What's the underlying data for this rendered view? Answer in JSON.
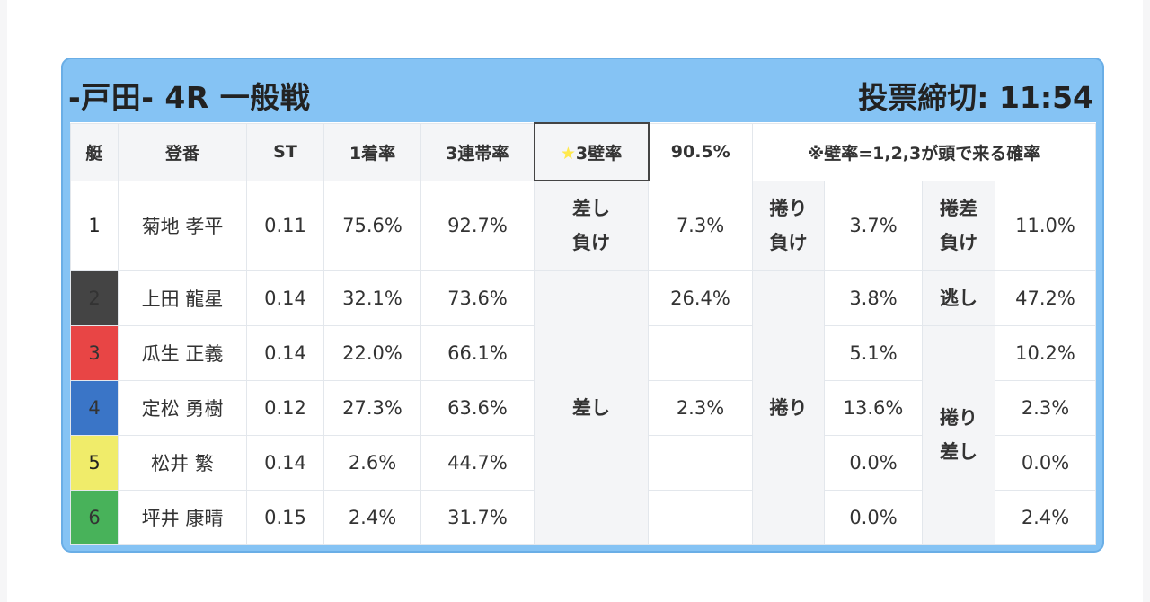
{
  "header": {
    "title": "-戸田- 4R 一般戦",
    "deadline": "投票締切: 11:54"
  },
  "columns": {
    "frame": "艇",
    "name": "登番",
    "st": "ST",
    "first_rate": "1着率",
    "quinella_rate": "3連帯率"
  },
  "wall": {
    "label_star": "★",
    "label_text": "3壁率",
    "value": "90.5%",
    "note": "※壁率=1,2,3が頭で来る確率"
  },
  "colors": {
    "highlight": "#efa223",
    "percent": "#d92c2c"
  },
  "rows": [
    {
      "frame": "1",
      "color": "#ffffff",
      "name": "菊地 孝平",
      "st": "0.11",
      "first": "75.6%",
      "quinella": "92.7%"
    },
    {
      "frame": "2",
      "color": "#444444",
      "name": "上田 龍星",
      "st": "0.14",
      "first": "32.1%",
      "quinella": "73.6%"
    },
    {
      "frame": "3",
      "color": "#e84545",
      "name": "瓜生 正義",
      "st": "0.14",
      "first": "22.0%",
      "quinella": "66.1%"
    },
    {
      "frame": "4",
      "color": "#3a75c7",
      "name": "定松 勇樹",
      "st": "0.12",
      "first": "27.3%",
      "quinella": "63.6%"
    },
    {
      "frame": "5",
      "color": "#f0ec6a",
      "name": "松井 繁",
      "st": "0.14",
      "first": "2.6%",
      "quinella": "44.7%"
    },
    {
      "frame": "6",
      "color": "#48b25a",
      "name": "坪井 康晴",
      "st": "0.15",
      "first": "2.4%",
      "quinella": "31.7%"
    }
  ],
  "results": {
    "sashi_make": {
      "line1": "差し",
      "line2": "負け",
      "value": "7.3%"
    },
    "makuri_make": {
      "line1": "捲り",
      "line2": "負け",
      "value": "3.7%"
    },
    "makurizashi_make": {
      "line1": "捲差",
      "line2": "負け",
      "value": "11.0%"
    },
    "sashi": {
      "label": "差し",
      "v2": "26.4%",
      "v3": "",
      "v4": "2.3%",
      "v5": "",
      "v6": ""
    },
    "makuri": {
      "label": "捲り",
      "v2": "3.8%",
      "v3": "5.1%",
      "v4": "13.6%",
      "v5": "0.0%",
      "v6": "0.0%"
    },
    "nige": {
      "label": "逃し",
      "value": "47.2%"
    },
    "makurizashi": {
      "line1": "捲り",
      "line2": "差し",
      "v3": "10.2%",
      "v4": "2.3%",
      "v5": "0.0%",
      "v6": "2.4%"
    }
  }
}
